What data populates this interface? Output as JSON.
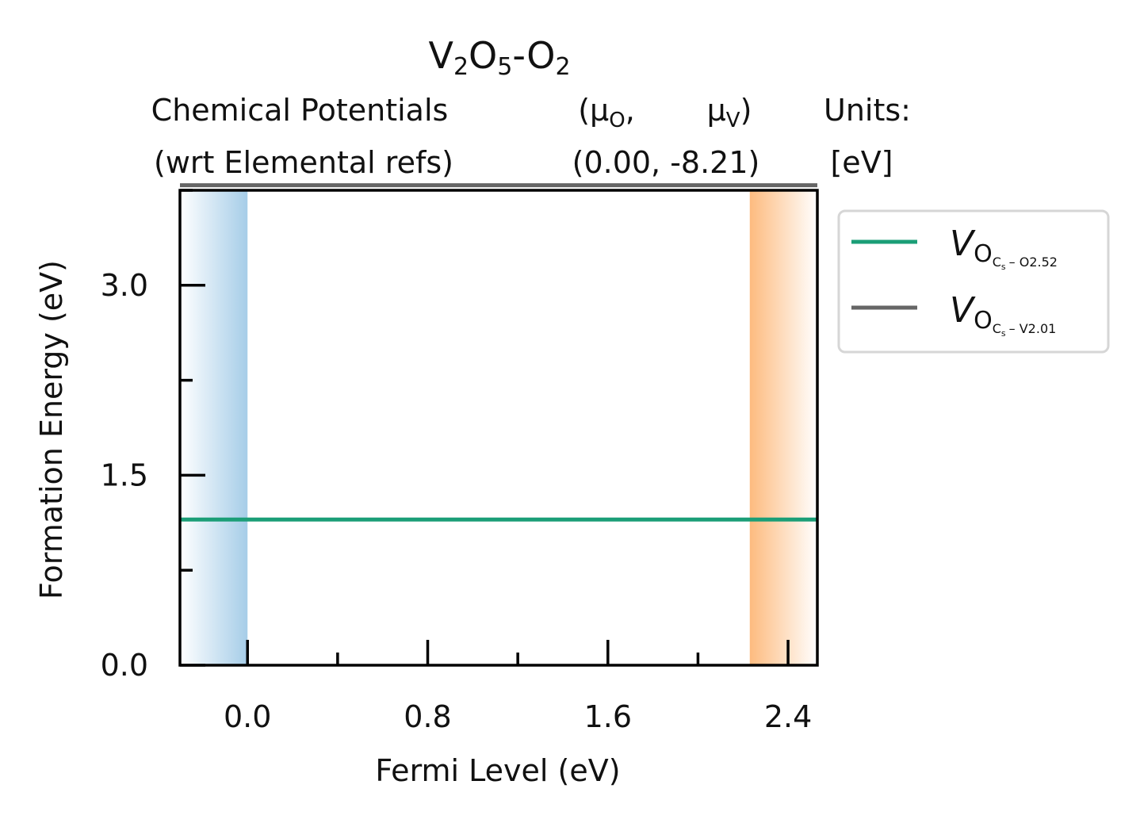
{
  "chart_data": {
    "type": "line",
    "title": {
      "main": "V",
      "main_parts": [
        {
          "text": "V",
          "sub": "2"
        },
        {
          "text": "O",
          "sub": "5"
        },
        {
          "text": "-O",
          "sub": "2"
        }
      ]
    },
    "chem_potentials": {
      "label_line1": "Chemical Potentials",
      "label_line2": "(wrt Elemental refs)",
      "mu_o_label": "(μ",
      "mu_o_sub": "O",
      "mu_o_suffix": ",",
      "mu_v_label": "μ",
      "mu_v_sub": "V",
      "mu_v_suffix": ")",
      "values_line": "(0.00,  -8.21)",
      "units_line1": "Units:",
      "units_line2": "[eV]"
    },
    "xlabel": "Fermi Level (eV)",
    "ylabel": "Formation Energy (eV)",
    "xlim": [
      -0.3,
      2.53
    ],
    "ylim": [
      0.0,
      3.75
    ],
    "xticks": [
      0.0,
      0.8,
      1.6,
      2.4
    ],
    "xtick_labels": [
      "0.0",
      "0.8",
      "1.6",
      "2.4"
    ],
    "xminor": [
      0.4,
      1.2,
      2.0
    ],
    "yticks": [
      0.0,
      1.5,
      3.0
    ],
    "ytick_labels": [
      "0.0",
      "1.5",
      "3.0"
    ],
    "yminor": [
      0.75,
      2.25,
      3.75
    ],
    "vbm": 0.0,
    "cbm": 2.23,
    "series": [
      {
        "name": "V",
        "sub": "O",
        "subsub": "C",
        "subsubsub": "s",
        "tail": "– O2.52",
        "color": "#1b9e77",
        "x": [
          -0.3,
          2.53
        ],
        "y": [
          1.15,
          1.15
        ]
      },
      {
        "name": "V",
        "sub": "O",
        "subsub": "C",
        "subsubsub": "s",
        "tail": "– V2.01",
        "color": "#666666",
        "x": [
          -0.3,
          2.53
        ],
        "y": [
          3.79,
          3.79
        ]
      }
    ],
    "legend": "outside-top-right",
    "grid": false,
    "colors": {
      "valence_band": "#a6cde8",
      "conduction_band": "#fdbb7f",
      "axis": "#000000"
    }
  }
}
